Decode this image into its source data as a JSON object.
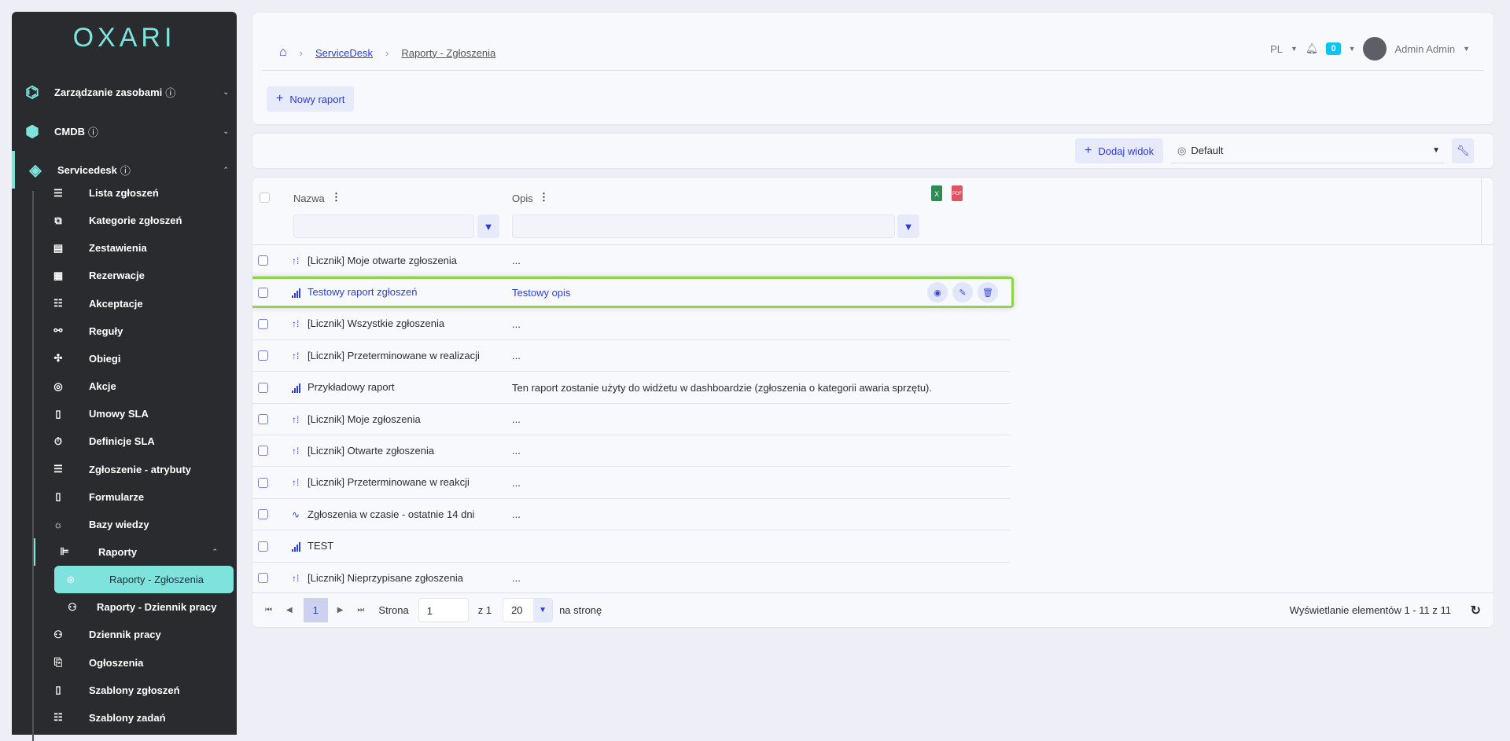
{
  "logo": "OXARI",
  "sidebar": {
    "top": [
      {
        "label": "Zarządzanie zasobami",
        "icon": "hexagons-icon"
      },
      {
        "label": "CMDB",
        "icon": "cmdb-icon"
      },
      {
        "label": "Servicedesk",
        "icon": "servicedesk-icon"
      }
    ],
    "items": [
      {
        "label": "Lista zgłoszeń",
        "icon": "☰"
      },
      {
        "label": "Kategorie zgłoszeń",
        "icon": "⧉"
      },
      {
        "label": "Zestawienia",
        "icon": "▤"
      },
      {
        "label": "Rezerwacje",
        "icon": "▦"
      },
      {
        "label": "Akceptacje",
        "icon": "☷"
      },
      {
        "label": "Reguły",
        "icon": "⚯"
      },
      {
        "label": "Obiegi",
        "icon": "✣"
      },
      {
        "label": "Akcje",
        "icon": "◎"
      },
      {
        "label": "Umowy SLA",
        "icon": "▯"
      },
      {
        "label": "Definicje SLA",
        "icon": "⏱"
      },
      {
        "label": "Zgłoszenie - atrybuty",
        "icon": "☰"
      },
      {
        "label": "Formularze",
        "icon": "▯"
      },
      {
        "label": "Bazy wiedzy",
        "icon": "☼"
      },
      {
        "label": "Raporty",
        "icon": "⊫"
      },
      {
        "label": "Raporty - Zgłoszenia",
        "icon": "⊛"
      },
      {
        "label": "Raporty - Dziennik pracy",
        "icon": "⚇"
      },
      {
        "label": "Dziennik pracy",
        "icon": "⚇"
      },
      {
        "label": "Ogłoszenia",
        "icon": "⎘"
      },
      {
        "label": "Szablony zgłoszeń",
        "icon": "▯"
      },
      {
        "label": "Szablony zadań",
        "icon": "☷"
      }
    ]
  },
  "breadcrumb": {
    "home": "home-icon",
    "items": [
      "ServiceDesk",
      "Raporty - Zgłoszenia"
    ]
  },
  "header": {
    "lang": "PL",
    "notifications": "0",
    "user": "Admin Admin",
    "new_report": "Nowy raport"
  },
  "toolbar": {
    "add_view": "Dodaj widok",
    "view": "Default"
  },
  "table": {
    "columns": [
      "Nazwa",
      "Opis"
    ],
    "rows": [
      {
        "type": "counter",
        "name": "[Licznik] Moje otwarte zgłoszenia",
        "desc": "..."
      },
      {
        "type": "bar",
        "name": "Testowy raport zgłoszeń",
        "desc": "Testowy opis",
        "highlighted": true
      },
      {
        "type": "counter",
        "name": "[Licznik] Wszystkie zgłoszenia",
        "desc": "..."
      },
      {
        "type": "counter",
        "name": "[Licznik] Przeterminowane w realizacji",
        "desc": "..."
      },
      {
        "type": "bar",
        "name": "Przykładowy raport",
        "desc": "Ten raport zostanie użyty do widżetu w dashboardzie (zgłoszenia o kategorii awaria sprzętu)."
      },
      {
        "type": "counter",
        "name": "[Licznik] Moje zgłoszenia",
        "desc": "..."
      },
      {
        "type": "counter",
        "name": "[Licznik] Otwarte zgłoszenia",
        "desc": "..."
      },
      {
        "type": "counter",
        "name": "[Licznik] Przeterminowane w reakcji",
        "desc": "..."
      },
      {
        "type": "line",
        "name": "Zgłoszenia w czasie - ostatnie 14 dni",
        "desc": "..."
      },
      {
        "type": "bar",
        "name": "TEST",
        "desc": ""
      },
      {
        "type": "counter",
        "name": "[Licznik] Nieprzypisane zgłoszenia",
        "desc": "..."
      }
    ]
  },
  "pagination": {
    "current": "1",
    "page_label": "Strona",
    "page_value": "1",
    "of": "z 1",
    "per_page": "20",
    "per_page_label": "na stronę",
    "summary": "Wyświetlanie elementów 1 - 11 z 11"
  },
  "colors": {
    "accent": "#2b3fd6",
    "sidebar": "#2a2b2e",
    "teal": "#7ee3dd",
    "highlight": "#8fd44a"
  }
}
